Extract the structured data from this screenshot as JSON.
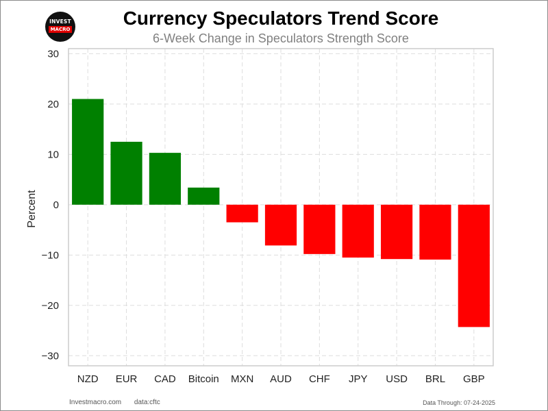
{
  "logo": {
    "line1": "INVEST",
    "line2": "MACRO"
  },
  "footer": {
    "site": "Investmacro.com",
    "source": "data:cftc",
    "date": "Data Through: 07-24-2025"
  },
  "colors": {
    "positive": "#008000",
    "negative": "#ff0000",
    "grid": "#dddddd",
    "axis": "#cccccc"
  },
  "chart_data": {
    "type": "bar",
    "title": "Currency Speculators Trend Score",
    "subtitle": "6-Week Change in Speculators Strength Score",
    "xlabel": "",
    "ylabel": "Percent",
    "categories": [
      "NZD",
      "EUR",
      "CAD",
      "Bitcoin",
      "MXN",
      "AUD",
      "CHF",
      "JPY",
      "USD",
      "BRL",
      "GBP"
    ],
    "values": [
      21.0,
      12.5,
      10.3,
      3.4,
      -3.5,
      -8.1,
      -9.8,
      -10.5,
      -10.8,
      -10.9,
      -24.3
    ],
    "ylim": [
      -32,
      31
    ],
    "yticks": [
      30,
      20,
      10,
      0,
      -10,
      -20,
      -30
    ],
    "ytick_labels": [
      "30",
      "20",
      "10",
      "0",
      "−10",
      "−20",
      "−30"
    ],
    "grid": true,
    "legend": "none"
  }
}
